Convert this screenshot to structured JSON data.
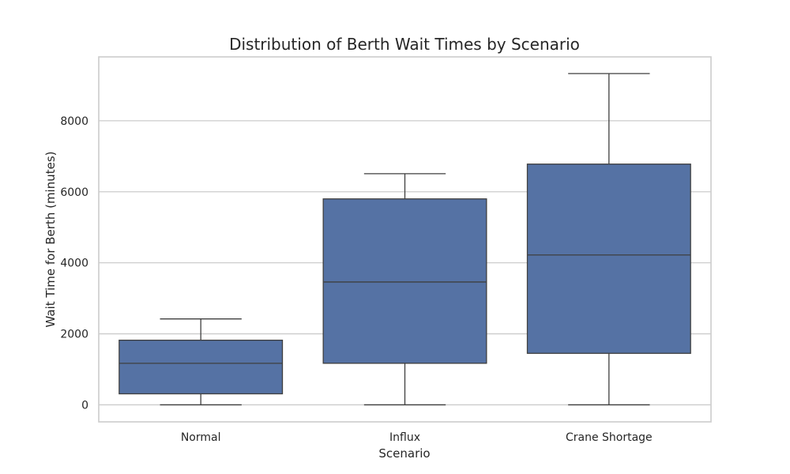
{
  "chart_data": {
    "type": "box",
    "title": "Distribution of Berth Wait Times by Scenario",
    "xlabel": "Scenario",
    "ylabel": "Wait Time for Berth (minutes)",
    "categories": [
      "Normal",
      "Influx",
      "Crane Shortage"
    ],
    "ylim": [
      -480,
      9800
    ],
    "yticks": [
      0,
      2000,
      4000,
      6000,
      8000
    ],
    "grid": true,
    "box_color": "#5572a4",
    "line_color": "#3f3f3f",
    "boxes": [
      {
        "category": "Normal",
        "whisker_low": 0,
        "q1": 310,
        "median": 1170,
        "q3": 1820,
        "whisker_high": 2420
      },
      {
        "category": "Influx",
        "whisker_low": 0,
        "q1": 1170,
        "median": 3460,
        "q3": 5800,
        "whisker_high": 6510
      },
      {
        "category": "Crane Shortage",
        "whisker_low": 0,
        "q1": 1450,
        "median": 4220,
        "q3": 6780,
        "whisker_high": 9330
      }
    ]
  }
}
